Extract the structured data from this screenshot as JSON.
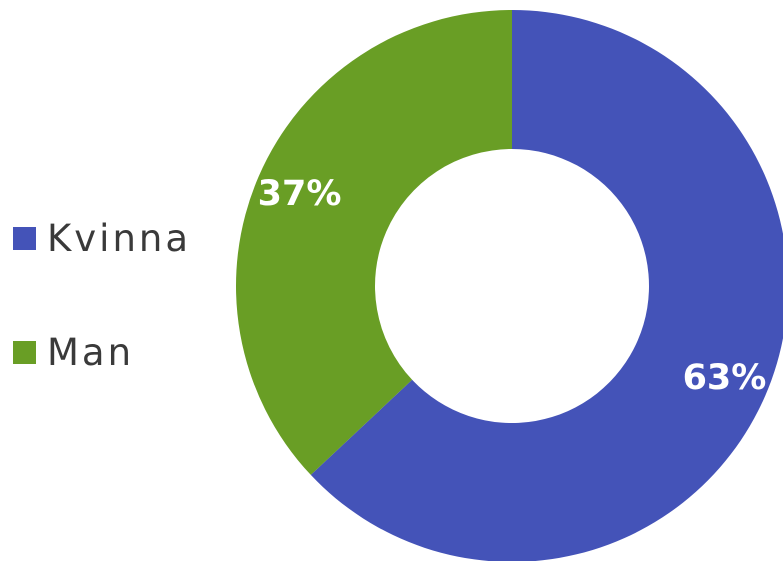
{
  "chart_data": {
    "type": "pie",
    "variant": "donut",
    "title": "",
    "categories": [
      "Kvinna",
      "Man"
    ],
    "values": [
      63,
      37
    ],
    "data_labels": [
      "63%",
      "37%"
    ],
    "colors": [
      "#4453b8",
      "#699e25"
    ],
    "label_color": "#ffffff",
    "legend": {
      "placement": "left",
      "entries": [
        {
          "label": "Kvinna",
          "color": "#4453b8"
        },
        {
          "label": "Man",
          "color": "#699e25"
        }
      ]
    }
  }
}
